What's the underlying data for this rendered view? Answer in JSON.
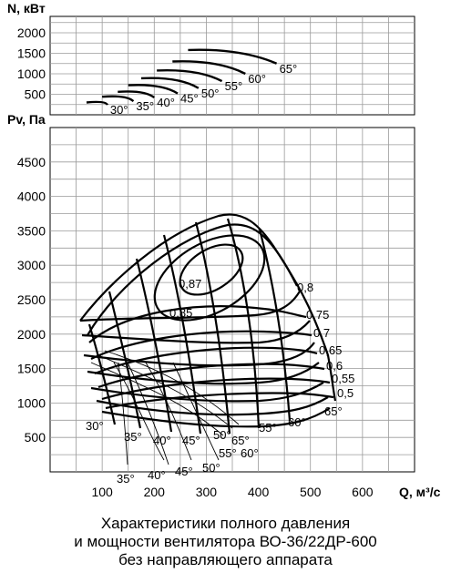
{
  "chart_data": [
    {
      "type": "line",
      "ylabel": "N, кВт",
      "yticks": [
        "500",
        "1000",
        "1500",
        "2000"
      ],
      "ylim": [
        0,
        2400
      ],
      "series": [
        {
          "name": "30°",
          "x": [
            70,
            110
          ],
          "y": [
            300,
            240
          ]
        },
        {
          "name": "35°",
          "x": [
            100,
            160
          ],
          "y": [
            440,
            330
          ]
        },
        {
          "name": "40°",
          "x": [
            130,
            200
          ],
          "y": [
            560,
            420
          ]
        },
        {
          "name": "45°",
          "x": [
            150,
            245
          ],
          "y": [
            720,
            520
          ]
        },
        {
          "name": "50°",
          "x": [
            175,
            285
          ],
          "y": [
            890,
            650
          ]
        },
        {
          "name": "55°",
          "x": [
            205,
            330
          ],
          "y": [
            1080,
            820
          ]
        },
        {
          "name": "60°",
          "x": [
            235,
            375
          ],
          "y": [
            1300,
            1000
          ]
        },
        {
          "name": "65°",
          "x": [
            265,
            435
          ],
          "y": [
            1580,
            1250
          ]
        }
      ]
    },
    {
      "type": "line",
      "ylabel": "Pv, Па",
      "xlabel": "Q, м³/с",
      "xticks": [
        "100",
        "200",
        "300",
        "400",
        "500",
        "600"
      ],
      "yticks": [
        "500",
        "1000",
        "1500",
        "2000",
        "2500",
        "3000",
        "3500",
        "4000",
        "4500"
      ],
      "xlim": [
        0,
        700
      ],
      "ylim": [
        0,
        5000
      ],
      "efficiency_labels": [
        "0,87",
        "0,85",
        "0,8",
        "0,75",
        "0,7",
        "0,65",
        "0,6",
        "0,55",
        "0,5"
      ],
      "angle_labels_upper": [
        "30°",
        "35°",
        "40°",
        "45°",
        "50°",
        "55°",
        "60°",
        "65°"
      ],
      "angle_labels_lower": [
        "35°",
        "40°",
        "45°",
        "50°",
        "55°",
        "60°",
        "65°"
      ],
      "series": [
        {
          "name": "30°",
          "x": [
            90,
            180,
            240,
            300,
            380,
            450,
            530
          ],
          "y": [
            1180,
            1140,
            1120,
            1130,
            1180,
            1280,
            1380
          ]
        },
        {
          "name": "35°",
          "x": [
            90,
            180,
            240,
            300,
            380,
            450,
            530
          ],
          "y": [
            1330,
            1280,
            1265,
            1285,
            1350,
            1460,
            1570
          ]
        },
        {
          "name": "40°",
          "x": [
            90,
            180,
            240,
            300,
            380,
            450,
            530
          ],
          "y": [
            1470,
            1400,
            1385,
            1410,
            1490,
            1640,
            1790
          ]
        },
        {
          "name": "45°",
          "x": [
            90,
            180,
            240,
            300,
            380,
            450,
            530
          ],
          "y": [
            1610,
            1530,
            1515,
            1545,
            1650,
            1830,
            2060
          ]
        },
        {
          "name": "50°",
          "x": [
            90,
            180,
            240,
            300,
            380,
            450,
            530
          ],
          "y": [
            1780,
            1690,
            1680,
            1720,
            1850,
            2080,
            2380
          ]
        },
        {
          "name": "55°",
          "x": [
            90,
            180,
            240,
            300,
            380,
            450,
            530
          ],
          "y": [
            2000,
            1980,
            2000,
            2080,
            2230,
            2430,
            2680
          ]
        },
        {
          "name": "60°",
          "x": [
            90,
            180,
            240,
            300,
            380,
            450,
            530
          ],
          "y": [
            2240,
            2380,
            2440,
            2500,
            2600,
            2720,
            2880
          ]
        },
        {
          "name": "65°",
          "x": [
            85,
            170,
            230,
            300,
            370,
            430,
            470
          ],
          "y": [
            2250,
            2820,
            3210,
            3600,
            3520,
            3170,
            2650
          ]
        }
      ]
    }
  ],
  "caption": {
    "line1": "Характеристики полного давления",
    "line2": "и мощности вентилятора ВО-36/22ДР-600",
    "line3": "без направляющего аппарата"
  }
}
